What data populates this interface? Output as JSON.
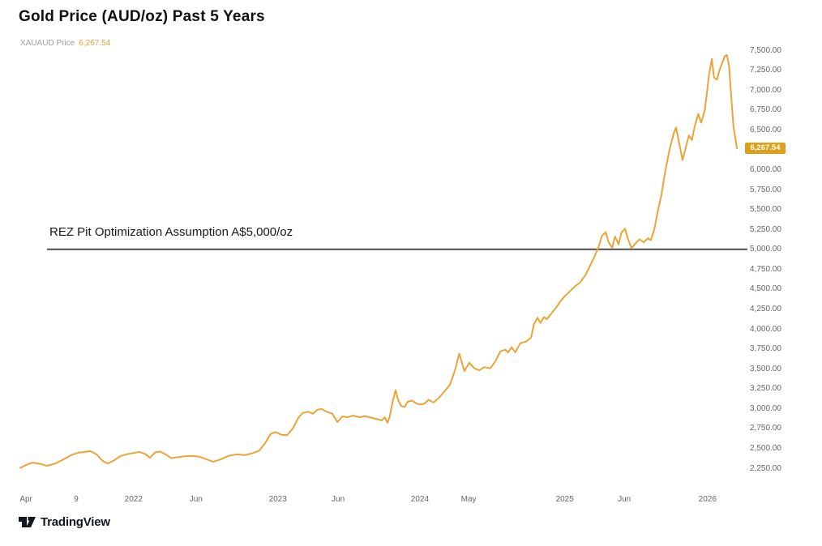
{
  "title": "Gold Price (AUD/oz) Past 5 Years",
  "legend": {
    "symbol_label": "XAUAUD Price",
    "price": "6,267.54"
  },
  "price_badge": {
    "label": "6,267.54"
  },
  "annotation": {
    "text": "REZ Pit Optimization Assumption A$5,000/oz",
    "value": 5000
  },
  "footer": {
    "brand": "TradingView"
  },
  "colors": {
    "line": "#EAA437",
    "badge": "#DCA01A",
    "annotation_line": "#4d4d4d",
    "axis_text": "#62656a",
    "legend_price": "#E0A032",
    "logo": "#131722"
  },
  "y_axis": {
    "ticks": [
      "7,500.00",
      "7,250.00",
      "7,000.00",
      "6,750.00",
      "6,500.00",
      "6,000.00",
      "5,750.00",
      "5,500.00",
      "5,250.00",
      "5,000.00",
      "4,750.00",
      "4,500.00",
      "4,250.00",
      "4,000.00",
      "3,750.00",
      "3,500.00",
      "3,250.00",
      "3,000.00",
      "2,750.00",
      "2,500.00",
      "2,250.00"
    ],
    "hidden_tick_behind_badge": "6,250.00"
  },
  "x_axis": {
    "ticks": [
      {
        "label": "Apr",
        "f": 0.008
      },
      {
        "label": "9",
        "f": 0.078
      },
      {
        "label": "2022",
        "f": 0.158
      },
      {
        "label": "Jun",
        "f": 0.245
      },
      {
        "label": "2023",
        "f": 0.359
      },
      {
        "label": "Jun",
        "f": 0.443
      },
      {
        "label": "2024",
        "f": 0.557
      },
      {
        "label": "May",
        "f": 0.625
      },
      {
        "label": "2025",
        "f": 0.759
      },
      {
        "label": "Jun",
        "f": 0.842
      },
      {
        "label": "2026",
        "f": 0.958
      }
    ]
  },
  "chart_data": {
    "type": "line",
    "title": "Gold Price (AUD/oz) Past 5 Years",
    "series_name": "XAUAUD Price",
    "last_price": 6267.54,
    "ylim": [
      2250,
      7500
    ],
    "y_tick_step": 250,
    "grid": false,
    "legend_position": "top-left",
    "x_tick_labels": [
      "Apr",
      "9",
      "2022",
      "Jun",
      "2023",
      "Jun",
      "2024",
      "May",
      "2025",
      "Jun",
      "2026"
    ],
    "annotation_line": {
      "value": 5000,
      "label": "REZ Pit Optimization Assumption A$5,000/oz"
    },
    "points": [
      [
        0.0,
        2255
      ],
      [
        0.008,
        2290
      ],
      [
        0.017,
        2320
      ],
      [
        0.028,
        2305
      ],
      [
        0.037,
        2280
      ],
      [
        0.049,
        2310
      ],
      [
        0.06,
        2360
      ],
      [
        0.071,
        2415
      ],
      [
        0.081,
        2445
      ],
      [
        0.09,
        2455
      ],
      [
        0.098,
        2465
      ],
      [
        0.107,
        2420
      ],
      [
        0.115,
        2340
      ],
      [
        0.122,
        2310
      ],
      [
        0.13,
        2345
      ],
      [
        0.139,
        2400
      ],
      [
        0.148,
        2425
      ],
      [
        0.157,
        2440
      ],
      [
        0.166,
        2455
      ],
      [
        0.174,
        2430
      ],
      [
        0.181,
        2380
      ],
      [
        0.188,
        2450
      ],
      [
        0.195,
        2460
      ],
      [
        0.203,
        2420
      ],
      [
        0.211,
        2375
      ],
      [
        0.22,
        2390
      ],
      [
        0.229,
        2400
      ],
      [
        0.24,
        2405
      ],
      [
        0.25,
        2395
      ],
      [
        0.26,
        2360
      ],
      [
        0.269,
        2330
      ],
      [
        0.279,
        2360
      ],
      [
        0.29,
        2405
      ],
      [
        0.302,
        2425
      ],
      [
        0.313,
        2415
      ],
      [
        0.324,
        2440
      ],
      [
        0.333,
        2470
      ],
      [
        0.341,
        2560
      ],
      [
        0.349,
        2680
      ],
      [
        0.356,
        2705
      ],
      [
        0.364,
        2670
      ],
      [
        0.372,
        2665
      ],
      [
        0.38,
        2750
      ],
      [
        0.388,
        2890
      ],
      [
        0.394,
        2945
      ],
      [
        0.401,
        2960
      ],
      [
        0.408,
        2935
      ],
      [
        0.414,
        2985
      ],
      [
        0.42,
        2995
      ],
      [
        0.427,
        2960
      ],
      [
        0.435,
        2935
      ],
      [
        0.442,
        2830
      ],
      [
        0.449,
        2900
      ],
      [
        0.456,
        2890
      ],
      [
        0.464,
        2910
      ],
      [
        0.473,
        2890
      ],
      [
        0.481,
        2905
      ],
      [
        0.489,
        2885
      ],
      [
        0.496,
        2870
      ],
      [
        0.504,
        2850
      ],
      [
        0.508,
        2890
      ],
      [
        0.512,
        2820
      ],
      [
        0.515,
        2900
      ],
      [
        0.519,
        3080
      ],
      [
        0.523,
        3230
      ],
      [
        0.527,
        3100
      ],
      [
        0.531,
        3030
      ],
      [
        0.536,
        3020
      ],
      [
        0.54,
        3085
      ],
      [
        0.546,
        3100
      ],
      [
        0.552,
        3065
      ],
      [
        0.557,
        3050
      ],
      [
        0.563,
        3060
      ],
      [
        0.569,
        3110
      ],
      [
        0.576,
        3075
      ],
      [
        0.583,
        3130
      ],
      [
        0.591,
        3210
      ],
      [
        0.599,
        3300
      ],
      [
        0.606,
        3480
      ],
      [
        0.612,
        3690
      ],
      [
        0.619,
        3470
      ],
      [
        0.626,
        3575
      ],
      [
        0.633,
        3505
      ],
      [
        0.64,
        3480
      ],
      [
        0.647,
        3520
      ],
      [
        0.655,
        3505
      ],
      [
        0.662,
        3590
      ],
      [
        0.669,
        3715
      ],
      [
        0.676,
        3740
      ],
      [
        0.68,
        3705
      ],
      [
        0.685,
        3770
      ],
      [
        0.69,
        3705
      ],
      [
        0.697,
        3820
      ],
      [
        0.705,
        3840
      ],
      [
        0.712,
        3890
      ],
      [
        0.716,
        4060
      ],
      [
        0.721,
        4140
      ],
      [
        0.725,
        4075
      ],
      [
        0.73,
        4150
      ],
      [
        0.734,
        4120
      ],
      [
        0.74,
        4190
      ],
      [
        0.747,
        4270
      ],
      [
        0.754,
        4360
      ],
      [
        0.76,
        4420
      ],
      [
        0.767,
        4480
      ],
      [
        0.774,
        4540
      ],
      [
        0.781,
        4590
      ],
      [
        0.788,
        4680
      ],
      [
        0.794,
        4790
      ],
      [
        0.8,
        4900
      ],
      [
        0.806,
        5030
      ],
      [
        0.811,
        5170
      ],
      [
        0.816,
        5215
      ],
      [
        0.82,
        5090
      ],
      [
        0.825,
        5020
      ],
      [
        0.829,
        5160
      ],
      [
        0.834,
        5060
      ],
      [
        0.838,
        5210
      ],
      [
        0.843,
        5260
      ],
      [
        0.847,
        5130
      ],
      [
        0.852,
        5015
      ],
      [
        0.858,
        5075
      ],
      [
        0.863,
        5125
      ],
      [
        0.869,
        5090
      ],
      [
        0.875,
        5140
      ],
      [
        0.879,
        5115
      ],
      [
        0.884,
        5260
      ],
      [
        0.888,
        5450
      ],
      [
        0.894,
        5700
      ],
      [
        0.899,
        5980
      ],
      [
        0.905,
        6250
      ],
      [
        0.911,
        6460
      ],
      [
        0.914,
        6530
      ],
      [
        0.919,
        6310
      ],
      [
        0.923,
        6120
      ],
      [
        0.928,
        6290
      ],
      [
        0.932,
        6430
      ],
      [
        0.936,
        6370
      ],
      [
        0.94,
        6540
      ],
      [
        0.945,
        6700
      ],
      [
        0.949,
        6590
      ],
      [
        0.954,
        6740
      ],
      [
        0.957,
        6950
      ],
      [
        0.96,
        7190
      ],
      [
        0.964,
        7390
      ],
      [
        0.967,
        7160
      ],
      [
        0.971,
        7130
      ],
      [
        0.975,
        7260
      ],
      [
        0.979,
        7350
      ],
      [
        0.982,
        7430
      ],
      [
        0.985,
        7440
      ],
      [
        0.988,
        7300
      ],
      [
        0.99,
        7050
      ],
      [
        0.992,
        6800
      ],
      [
        0.994,
        6550
      ],
      [
        0.997,
        6380
      ],
      [
        0.999,
        6267.54
      ]
    ]
  }
}
